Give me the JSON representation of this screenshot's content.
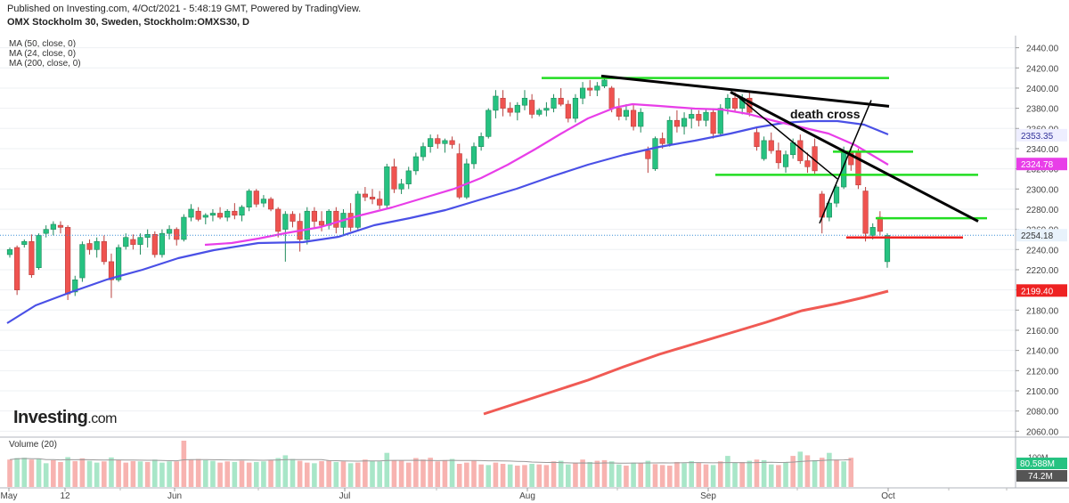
{
  "header": {
    "published": "Published on Investing.com, 4/Oct/2021 - 5:48:19 GMT, Powered by TradingView.",
    "symbol": "OMX Stockholm 30, Sweden, Stockholm:OMXS30, D"
  },
  "legend": [
    "MA (50, close, 0)",
    "MA (24, close, 0)",
    "MA (200, close, 0)"
  ],
  "volume_label": "Volume (20)",
  "logo": {
    "main": "Investing",
    "suffix": ".com"
  },
  "annotation": "death cross",
  "colors": {
    "up": "#26c281",
    "down": "#ef5350",
    "ma50": "#4a50e6",
    "ma24": "#e83ee8",
    "ma200": "#f05a54",
    "green_line": "#22dd22",
    "red_line": "#ee2222"
  },
  "chart_data": {
    "type": "candlestick",
    "x_ticks": [
      "May",
      "12",
      "Jun",
      "Jul",
      "Aug",
      "Sep",
      "Oct"
    ],
    "price_ticks": [
      2060,
      2080,
      2100,
      2120,
      2140,
      2160,
      2180,
      2200,
      2220,
      2240,
      2260,
      2280,
      2300,
      2320,
      2340,
      2360,
      2380,
      2400,
      2420,
      2440
    ],
    "price_range": [
      2055,
      2452
    ],
    "price_labels": {
      "last": "2254.18",
      "ma50": "2353.35",
      "ma24": "2324.78",
      "ma200": "2199.40"
    },
    "volume_labels": {
      "vol": "80.588M",
      "vol_ma": "74.2M",
      "axis": "100M"
    },
    "candles": [
      [
        2235,
        2242,
        2232,
        2240
      ],
      [
        2242,
        2244,
        2195,
        2200
      ],
      [
        2245,
        2250,
        2242,
        2248
      ],
      [
        2248,
        2255,
        2212,
        2215
      ],
      [
        2222,
        2256,
        2220,
        2254
      ],
      [
        2256,
        2264,
        2252,
        2260
      ],
      [
        2260,
        2268,
        2254,
        2265
      ],
      [
        2264,
        2268,
        2256,
        2262
      ],
      [
        2262,
        2264,
        2190,
        2196
      ],
      [
        2198,
        2214,
        2194,
        2210
      ],
      [
        2212,
        2248,
        2208,
        2245
      ],
      [
        2246,
        2250,
        2235,
        2240
      ],
      [
        2240,
        2252,
        2232,
        2248
      ],
      [
        2248,
        2254,
        2225,
        2228
      ],
      [
        2228,
        2236,
        2192,
        2210
      ],
      [
        2210,
        2245,
        2208,
        2242
      ],
      [
        2243,
        2256,
        2240,
        2252
      ],
      [
        2250,
        2255,
        2240,
        2245
      ],
      [
        2245,
        2256,
        2235,
        2252
      ],
      [
        2252,
        2260,
        2242,
        2255
      ],
      [
        2255,
        2258,
        2232,
        2235
      ],
      [
        2235,
        2260,
        2232,
        2256
      ],
      [
        2256,
        2264,
        2250,
        2260
      ],
      [
        2260,
        2262,
        2244,
        2250
      ],
      [
        2250,
        2275,
        2248,
        2272
      ],
      [
        2272,
        2285,
        2268,
        2280
      ],
      [
        2278,
        2282,
        2268,
        2270
      ],
      [
        2272,
        2276,
        2265,
        2274
      ],
      [
        2274,
        2280,
        2268,
        2276
      ],
      [
        2276,
        2282,
        2270,
        2272
      ],
      [
        2272,
        2280,
        2268,
        2278
      ],
      [
        2278,
        2286,
        2270,
        2274
      ],
      [
        2274,
        2284,
        2268,
        2282
      ],
      [
        2282,
        2300,
        2278,
        2298
      ],
      [
        2298,
        2300,
        2282,
        2285
      ],
      [
        2286,
        2294,
        2282,
        2290
      ],
      [
        2290,
        2292,
        2278,
        2280
      ],
      [
        2280,
        2282,
        2252,
        2258
      ],
      [
        2260,
        2278,
        2228,
        2275
      ],
      [
        2275,
        2278,
        2262,
        2268
      ],
      [
        2268,
        2276,
        2238,
        2250
      ],
      [
        2250,
        2282,
        2245,
        2278
      ],
      [
        2278,
        2282,
        2262,
        2268
      ],
      [
        2268,
        2278,
        2258,
        2264
      ],
      [
        2264,
        2280,
        2260,
        2278
      ],
      [
        2278,
        2282,
        2256,
        2262
      ],
      [
        2262,
        2280,
        2255,
        2276
      ],
      [
        2276,
        2286,
        2258,
        2262
      ],
      [
        2262,
        2298,
        2260,
        2295
      ],
      [
        2295,
        2302,
        2288,
        2292
      ],
      [
        2292,
        2300,
        2285,
        2290
      ],
      [
        2290,
        2298,
        2280,
        2284
      ],
      [
        2284,
        2325,
        2280,
        2322
      ],
      [
        2322,
        2330,
        2296,
        2300
      ],
      [
        2300,
        2310,
        2295,
        2305
      ],
      [
        2305,
        2322,
        2300,
        2318
      ],
      [
        2318,
        2336,
        2314,
        2332
      ],
      [
        2332,
        2346,
        2328,
        2342
      ],
      [
        2342,
        2354,
        2336,
        2350
      ],
      [
        2350,
        2354,
        2340,
        2345
      ],
      [
        2345,
        2350,
        2336,
        2348
      ],
      [
        2348,
        2352,
        2340,
        2344
      ],
      [
        2335,
        2345,
        2290,
        2292
      ],
      [
        2292,
        2330,
        2290,
        2325
      ],
      [
        2325,
        2346,
        2320,
        2342
      ],
      [
        2342,
        2356,
        2338,
        2352
      ],
      [
        2352,
        2380,
        2350,
        2378
      ],
      [
        2378,
        2398,
        2370,
        2392
      ],
      [
        2390,
        2398,
        2372,
        2380
      ],
      [
        2380,
        2386,
        2372,
        2376
      ],
      [
        2376,
        2386,
        2368,
        2383
      ],
      [
        2383,
        2398,
        2378,
        2390
      ],
      [
        2388,
        2394,
        2370,
        2374
      ],
      [
        2374,
        2380,
        2372,
        2378
      ],
      [
        2378,
        2386,
        2372,
        2380
      ],
      [
        2380,
        2394,
        2376,
        2390
      ],
      [
        2390,
        2400,
        2382,
        2384
      ],
      [
        2384,
        2388,
        2366,
        2370
      ],
      [
        2370,
        2394,
        2366,
        2390
      ],
      [
        2390,
        2406,
        2384,
        2400
      ],
      [
        2400,
        2408,
        2392,
        2398
      ],
      [
        2398,
        2406,
        2392,
        2402
      ],
      [
        2402,
        2412,
        2400,
        2408
      ],
      [
        2400,
        2402,
        2376,
        2380
      ],
      [
        2380,
        2390,
        2368,
        2372
      ],
      [
        2372,
        2384,
        2368,
        2378
      ],
      [
        2378,
        2384,
        2358,
        2362
      ],
      [
        2362,
        2380,
        2356,
        2376
      ],
      [
        2338,
        2342,
        2316,
        2330
      ],
      [
        2320,
        2352,
        2318,
        2350
      ],
      [
        2350,
        2356,
        2340,
        2345
      ],
      [
        2345,
        2372,
        2342,
        2368
      ],
      [
        2368,
        2378,
        2356,
        2362
      ],
      [
        2362,
        2376,
        2354,
        2370
      ],
      [
        2370,
        2380,
        2360,
        2374
      ],
      [
        2374,
        2378,
        2362,
        2368
      ],
      [
        2368,
        2380,
        2362,
        2376
      ],
      [
        2376,
        2380,
        2350,
        2355
      ],
      [
        2355,
        2384,
        2352,
        2380
      ],
      [
        2380,
        2394,
        2374,
        2390
      ],
      [
        2390,
        2396,
        2376,
        2380
      ],
      [
        2380,
        2394,
        2374,
        2390
      ],
      [
        2390,
        2396,
        2372,
        2376
      ],
      [
        2356,
        2362,
        2338,
        2342
      ],
      [
        2330,
        2352,
        2328,
        2348
      ],
      [
        2348,
        2356,
        2335,
        2338
      ],
      [
        2338,
        2346,
        2320,
        2326
      ],
      [
        2322,
        2338,
        2316,
        2334
      ],
      [
        2334,
        2350,
        2330,
        2346
      ],
      [
        2348,
        2354,
        2325,
        2328
      ],
      [
        2328,
        2336,
        2316,
        2322
      ],
      [
        2342,
        2350,
        2315,
        2318
      ],
      [
        2295,
        2298,
        2256,
        2272
      ],
      [
        2272,
        2290,
        2268,
        2286
      ],
      [
        2286,
        2304,
        2282,
        2302
      ],
      [
        2302,
        2342,
        2300,
        2336
      ],
      [
        2336,
        2342,
        2318,
        2324
      ],
      [
        2336,
        2340,
        2300,
        2304
      ],
      [
        2298,
        2302,
        2248,
        2256
      ],
      [
        2254,
        2266,
        2250,
        2262
      ],
      [
        2272,
        2278,
        2254,
        2258
      ],
      [
        2228,
        2256,
        2222,
        2254
      ]
    ],
    "volume": [
      [
        90,
        0
      ],
      [
        95,
        1
      ],
      [
        96,
        1
      ],
      [
        90,
        0
      ],
      [
        92,
        1
      ],
      [
        78,
        1
      ],
      [
        88,
        0
      ],
      [
        82,
        0
      ],
      [
        98,
        1
      ],
      [
        85,
        0
      ],
      [
        94,
        0
      ],
      [
        86,
        1
      ],
      [
        80,
        1
      ],
      [
        84,
        0
      ],
      [
        97,
        1
      ],
      [
        88,
        0
      ],
      [
        80,
        0
      ],
      [
        85,
        0
      ],
      [
        84,
        1
      ],
      [
        82,
        0
      ],
      [
        90,
        1
      ],
      [
        80,
        1
      ],
      [
        84,
        1
      ],
      [
        84,
        0
      ],
      [
        152,
        0
      ],
      [
        90,
        0
      ],
      [
        92,
        0
      ],
      [
        88,
        1
      ],
      [
        86,
        1
      ],
      [
        80,
        0
      ],
      [
        84,
        0
      ],
      [
        82,
        1
      ],
      [
        86,
        0
      ],
      [
        80,
        0
      ],
      [
        82,
        1
      ],
      [
        84,
        1
      ],
      [
        88,
        0
      ],
      [
        95,
        1
      ],
      [
        104,
        1
      ],
      [
        92,
        1
      ],
      [
        86,
        0
      ],
      [
        80,
        0
      ],
      [
        78,
        1
      ],
      [
        85,
        0
      ],
      [
        88,
        0
      ],
      [
        82,
        1
      ],
      [
        84,
        0
      ],
      [
        78,
        1
      ],
      [
        80,
        0
      ],
      [
        90,
        0
      ],
      [
        86,
        1
      ],
      [
        84,
        1
      ],
      [
        112,
        1
      ],
      [
        88,
        0
      ],
      [
        86,
        0
      ],
      [
        80,
        0
      ],
      [
        95,
        0
      ],
      [
        90,
        0
      ],
      [
        96,
        0
      ],
      [
        84,
        0
      ],
      [
        88,
        0
      ],
      [
        92,
        1
      ],
      [
        76,
        0
      ],
      [
        80,
        0
      ],
      [
        86,
        0
      ],
      [
        74,
        0
      ],
      [
        72,
        1
      ],
      [
        80,
        0
      ],
      [
        76,
        0
      ],
      [
        74,
        1
      ],
      [
        70,
        0
      ],
      [
        72,
        0
      ],
      [
        76,
        1
      ],
      [
        74,
        0
      ],
      [
        72,
        0
      ],
      [
        84,
        0
      ],
      [
        86,
        1
      ],
      [
        74,
        1
      ],
      [
        80,
        0
      ],
      [
        90,
        0
      ],
      [
        82,
        1
      ],
      [
        86,
        0
      ],
      [
        88,
        0
      ],
      [
        84,
        1
      ],
      [
        74,
        1
      ],
      [
        70,
        0
      ],
      [
        80,
        1
      ],
      [
        78,
        0
      ],
      [
        86,
        1
      ],
      [
        75,
        0
      ],
      [
        72,
        0
      ],
      [
        70,
        0
      ],
      [
        82,
        0
      ],
      [
        78,
        1
      ],
      [
        85,
        1
      ],
      [
        80,
        0
      ],
      [
        74,
        0
      ],
      [
        72,
        1
      ],
      [
        84,
        0
      ],
      [
        102,
        1
      ],
      [
        80,
        1
      ],
      [
        82,
        0
      ],
      [
        86,
        1
      ],
      [
        90,
        0
      ],
      [
        88,
        1
      ],
      [
        74,
        1
      ],
      [
        72,
        0
      ],
      [
        82,
        1
      ],
      [
        102,
        0
      ],
      [
        116,
        1
      ],
      [
        104,
        0
      ],
      [
        88,
        1
      ],
      [
        96,
        0
      ],
      [
        112,
        1
      ],
      [
        90,
        0
      ],
      [
        84,
        1
      ],
      [
        96,
        0
      ]
    ],
    "ma50_points": [
      [
        8,
        363
      ],
      [
        40,
        343
      ],
      [
        80,
        328
      ],
      [
        120,
        314
      ],
      [
        160,
        303
      ],
      [
        200,
        290
      ],
      [
        240,
        281
      ],
      [
        290,
        273
      ],
      [
        340,
        272
      ],
      [
        380,
        266
      ],
      [
        420,
        253
      ],
      [
        460,
        245
      ],
      [
        500,
        236
      ],
      [
        540,
        224
      ],
      [
        580,
        212
      ],
      [
        620,
        198
      ],
      [
        660,
        185
      ],
      [
        700,
        174
      ],
      [
        740,
        165
      ],
      [
        780,
        158
      ],
      [
        820,
        150
      ],
      [
        850,
        143
      ],
      [
        880,
        138
      ],
      [
        910,
        136
      ],
      [
        940,
        136
      ],
      [
        970,
        140
      ],
      [
        997,
        151
      ]
    ],
    "ma24_points": [
      [
        230,
        275
      ],
      [
        260,
        273
      ],
      [
        290,
        268
      ],
      [
        320,
        262
      ],
      [
        360,
        255
      ],
      [
        400,
        243
      ],
      [
        440,
        233
      ],
      [
        480,
        221
      ],
      [
        510,
        212
      ],
      [
        540,
        200
      ],
      [
        570,
        185
      ],
      [
        600,
        168
      ],
      [
        630,
        150
      ],
      [
        660,
        133
      ],
      [
        690,
        121
      ],
      [
        710,
        117
      ],
      [
        740,
        119
      ],
      [
        780,
        122
      ],
      [
        810,
        123
      ],
      [
        840,
        128
      ],
      [
        870,
        136
      ],
      [
        900,
        143
      ],
      [
        930,
        150
      ],
      [
        960,
        163
      ],
      [
        997,
        185
      ]
    ],
    "ma200_points": [
      [
        543,
        465
      ],
      [
        580,
        453
      ],
      [
        620,
        440
      ],
      [
        660,
        427
      ],
      [
        700,
        412
      ],
      [
        740,
        398
      ],
      [
        780,
        386
      ],
      [
        820,
        374
      ],
      [
        860,
        362
      ],
      [
        900,
        349
      ],
      [
        940,
        341
      ],
      [
        970,
        334
      ],
      [
        997,
        327
      ]
    ],
    "h_lines": [
      {
        "y": 2410,
        "x1": 608,
        "x2": 998,
        "color": "green"
      },
      {
        "y": 2337,
        "x1": 935,
        "x2": 1025,
        "color": "green"
      },
      {
        "y": 2314,
        "x1": 803,
        "x2": 1098,
        "color": "green"
      },
      {
        "y": 2271,
        "x1": 983,
        "x2": 1108,
        "color": "green"
      },
      {
        "y": 2252,
        "x1": 950,
        "x2": 1081,
        "color": "red"
      }
    ],
    "trend_lines": [
      {
        "from": [
          675,
          2412
        ],
        "to": [
          998,
          2382
        ],
        "w": 3
      },
      {
        "from": [
          820,
          2396
        ],
        "to": [
          1098,
          2268
        ],
        "w": 3
      },
      {
        "from": [
          822,
          2396
        ],
        "to": [
          940,
          2310
        ],
        "w": 1.5
      },
      {
        "from": [
          920,
          2266
        ],
        "to": [
          978,
          2388
        ],
        "w": 1.5
      }
    ]
  }
}
